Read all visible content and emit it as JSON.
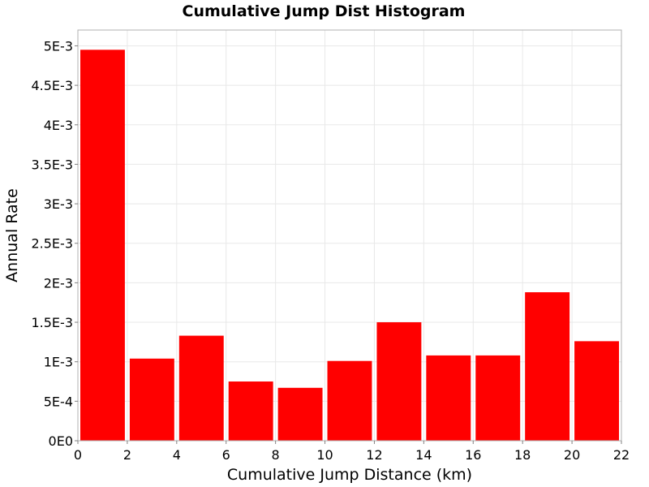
{
  "chart_data": {
    "type": "bar",
    "title": "Cumulative Jump Dist Histogram",
    "xlabel": "Cumulative Jump Distance (km)",
    "ylabel": "Annual Rate",
    "xlim": [
      0,
      22
    ],
    "ylim": [
      0,
      0.0052
    ],
    "bin_width": 2,
    "x_ticks": [
      0,
      2,
      4,
      6,
      8,
      10,
      12,
      14,
      16,
      18,
      20,
      22
    ],
    "x_tick_labels": [
      "0",
      "2",
      "4",
      "6",
      "8",
      "10",
      "12",
      "14",
      "16",
      "18",
      "20",
      "22"
    ],
    "y_ticks": [
      0,
      0.0005,
      0.001,
      0.0015,
      0.002,
      0.0025,
      0.003,
      0.0035,
      0.004,
      0.0045,
      0.005
    ],
    "y_tick_labels": [
      "0E0",
      "5E-4",
      "1E-3",
      "1.5E-3",
      "2E-3",
      "2.5E-3",
      "3E-3",
      "3.5E-3",
      "4E-3",
      "4.5E-3",
      "5E-3"
    ],
    "bin_centers": [
      1,
      3,
      5,
      7,
      9,
      11,
      13,
      15,
      17,
      19,
      21
    ],
    "values": [
      0.00495,
      0.00104,
      0.00133,
      0.00075,
      0.00067,
      0.00101,
      0.0015,
      0.00108,
      0.00108,
      0.00188,
      0.00126
    ],
    "bar_color": "#ff0000",
    "grid": true
  }
}
